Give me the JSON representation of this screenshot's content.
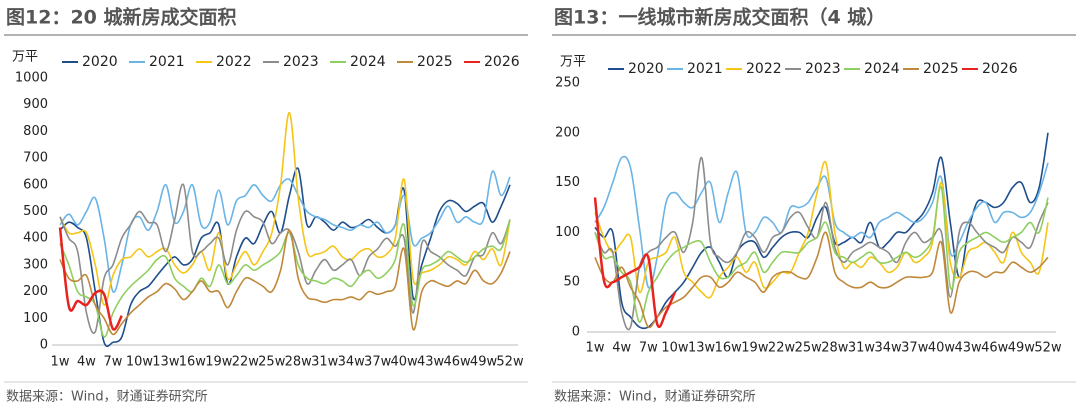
{
  "chart_data": [
    {
      "type": "line",
      "title": "图12：20 城新房成交面积",
      "y_label": "万平",
      "source": "数据来源：Wind，财通证券研究所",
      "categories": [
        "1w",
        null,
        null,
        "4w",
        null,
        null,
        "7w",
        null,
        null,
        "10w",
        null,
        null,
        "13w",
        null,
        null,
        "16w",
        null,
        null,
        "19w",
        null,
        null,
        "22w",
        null,
        null,
        "25w",
        null,
        null,
        "28w",
        null,
        null,
        "31w",
        null,
        null,
        "34w",
        null,
        null,
        "37w",
        null,
        null,
        "40w",
        null,
        null,
        "43w",
        null,
        null,
        "46w",
        null,
        null,
        "49w",
        null,
        null,
        "52w"
      ],
      "ylim": [
        0,
        1000
      ],
      "yticks": [
        0,
        100,
        200,
        300,
        400,
        500,
        600,
        700,
        800,
        900,
        1000
      ],
      "series": [
        {
          "name": "2020",
          "color": "#1f4e8c",
          "values": [
            430,
            460,
            440,
            400,
            200,
            10,
            10,
            30,
            150,
            200,
            220,
            260,
            300,
            330,
            300,
            320,
            400,
            420,
            450,
            230,
            330,
            400,
            380,
            450,
            500,
            420,
            560,
            660,
            450,
            480,
            460,
            430,
            460,
            440,
            450,
            470,
            440,
            420,
            450,
            580,
            180,
            300,
            400,
            500,
            540,
            530,
            500,
            520,
            530,
            460,
            520,
            600
          ]
        },
        {
          "name": "2021",
          "color": "#6ab4e6",
          "values": [
            450,
            490,
            450,
            500,
            550,
            400,
            200,
            300,
            450,
            480,
            430,
            500,
            600,
            460,
            500,
            600,
            450,
            460,
            580,
            450,
            540,
            560,
            600,
            560,
            540,
            600,
            620,
            560,
            500,
            480,
            470,
            450,
            440,
            430,
            450,
            440,
            460,
            420,
            450,
            560,
            380,
            400,
            420,
            470,
            520,
            460,
            480,
            460,
            470,
            650,
            560,
            630
          ]
        },
        {
          "name": "2022",
          "color": "#f5c518",
          "values": [
            480,
            420,
            420,
            420,
            300,
            150,
            260,
            320,
            330,
            360,
            330,
            350,
            360,
            300,
            270,
            300,
            350,
            280,
            420,
            250,
            300,
            350,
            300,
            350,
            420,
            600,
            870,
            550,
            350,
            340,
            350,
            370,
            330,
            320,
            350,
            360,
            330,
            340,
            400,
            620,
            250,
            270,
            280,
            300,
            330,
            320,
            300,
            350,
            320,
            360,
            300,
            470
          ]
        },
        {
          "name": "2023",
          "color": "#8c8c8c",
          "values": [
            480,
            400,
            350,
            120,
            50,
            250,
            300,
            400,
            450,
            500,
            460,
            450,
            350,
            470,
            600,
            350,
            350,
            380,
            400,
            300,
            430,
            500,
            480,
            460,
            380,
            420,
            430,
            350,
            230,
            280,
            320,
            280,
            300,
            320,
            260,
            330,
            360,
            400,
            370,
            400,
            120,
            380,
            350,
            330,
            300,
            280,
            260,
            330,
            340,
            420,
            380,
            470
          ]
        },
        {
          "name": "2024",
          "color": "#8fcf5f",
          "values": [
            380,
            300,
            200,
            180,
            150,
            30,
            120,
            180,
            220,
            250,
            280,
            320,
            330,
            250,
            220,
            200,
            250,
            220,
            300,
            230,
            260,
            300,
            280,
            300,
            320,
            350,
            420,
            300,
            250,
            240,
            230,
            250,
            240,
            220,
            260,
            280,
            250,
            270,
            320,
            450,
            150,
            280,
            300,
            320,
            350,
            330,
            310,
            330,
            360,
            370,
            360,
            470
          ]
        },
        {
          "name": "2025",
          "color": "#c0883a",
          "values": [
            320,
            250,
            240,
            260,
            150,
            100,
            40,
            80,
            120,
            150,
            180,
            200,
            230,
            210,
            170,
            200,
            240,
            200,
            200,
            140,
            200,
            250,
            240,
            220,
            200,
            280,
            430,
            250,
            180,
            170,
            160,
            170,
            170,
            180,
            170,
            200,
            190,
            200,
            220,
            360,
            60,
            200,
            240,
            230,
            220,
            240,
            230,
            280,
            240,
            230,
            270,
            350
          ]
        },
        {
          "name": "2026",
          "color": "#e8221e",
          "values": [
            440,
            145,
            165,
            150,
            195,
            190,
            60,
            110,
            null,
            null,
            null,
            null,
            null,
            null,
            null,
            null,
            null,
            null,
            null,
            null,
            null,
            null,
            null,
            null,
            null,
            null,
            null,
            null,
            null,
            null,
            null,
            null,
            null,
            null,
            null,
            null,
            null,
            null,
            null,
            null,
            null,
            null,
            null,
            null,
            null,
            null,
            null,
            null,
            null,
            null,
            null,
            null
          ]
        }
      ]
    },
    {
      "type": "line",
      "title": "图13：一线城市新房成交面积（4 城）",
      "y_label": "万平",
      "source": "数据来源：Wind，财通证券研究所",
      "categories": [
        "1w",
        null,
        null,
        "4w",
        null,
        null,
        "7w",
        null,
        null,
        "10w",
        null,
        null,
        "13w",
        null,
        null,
        "16w",
        null,
        null,
        "19w",
        null,
        null,
        "22w",
        null,
        null,
        "25w",
        null,
        null,
        "28w",
        null,
        null,
        "31w",
        null,
        null,
        "34w",
        null,
        null,
        "37w",
        null,
        null,
        "40w",
        null,
        null,
        "43w",
        null,
        null,
        "46w",
        null,
        null,
        "49w",
        null,
        null,
        "52w"
      ],
      "ylim": [
        0,
        250
      ],
      "yticks": [
        0,
        50,
        100,
        150,
        200,
        250
      ],
      "series": [
        {
          "name": "2020",
          "color": "#1f4e8c",
          "values": [
            105,
            95,
            100,
            30,
            15,
            5,
            5,
            15,
            30,
            40,
            50,
            65,
            80,
            85,
            70,
            55,
            80,
            90,
            90,
            75,
            85,
            95,
            100,
            100,
            95,
            115,
            125,
            90,
            90,
            95,
            90,
            110,
            85,
            90,
            100,
            100,
            110,
            120,
            140,
            175,
            110,
            55,
            100,
            130,
            130,
            125,
            130,
            145,
            150,
            130,
            145,
            200
          ]
        },
        {
          "name": "2021",
          "color": "#6ab4e6",
          "values": [
            110,
            125,
            150,
            175,
            165,
            105,
            45,
            75,
            130,
            140,
            130,
            125,
            140,
            150,
            110,
            140,
            160,
            100,
            100,
            115,
            110,
            100,
            125,
            125,
            130,
            145,
            155,
            110,
            100,
            95,
            100,
            95,
            110,
            115,
            120,
            115,
            110,
            115,
            130,
            155,
            80,
            90,
            110,
            125,
            130,
            110,
            120,
            120,
            115,
            120,
            140,
            170
          ]
        },
        {
          "name": "2022",
          "color": "#f5c518",
          "values": [
            120,
            95,
            80,
            90,
            95,
            40,
            70,
            75,
            80,
            95,
            60,
            50,
            40,
            35,
            55,
            65,
            75,
            60,
            70,
            45,
            50,
            60,
            60,
            80,
            100,
            140,
            170,
            100,
            65,
            70,
            65,
            75,
            70,
            60,
            65,
            80,
            70,
            75,
            90,
            150,
            70,
            55,
            80,
            85,
            90,
            80,
            70,
            100,
            80,
            70,
            60,
            110
          ]
        },
        {
          "name": "2023",
          "color": "#8c8c8c",
          "values": [
            100,
            80,
            80,
            20,
            5,
            65,
            80,
            85,
            95,
            100,
            80,
            110,
            175,
            90,
            75,
            70,
            80,
            100,
            95,
            80,
            95,
            100,
            115,
            120,
            105,
            95,
            130,
            85,
            70,
            80,
            85,
            90,
            85,
            80,
            70,
            90,
            100,
            90,
            95,
            100,
            35,
            100,
            110,
            100,
            90,
            85,
            80,
            95,
            90,
            85,
            110,
            130
          ]
        },
        {
          "name": "2024",
          "color": "#8fcf5f",
          "values": [
            100,
            75,
            75,
            60,
            50,
            10,
            40,
            55,
            70,
            80,
            85,
            90,
            90,
            70,
            55,
            55,
            65,
            70,
            80,
            60,
            70,
            80,
            80,
            80,
            90,
            95,
            110,
            80,
            75,
            70,
            75,
            80,
            70,
            70,
            75,
            80,
            75,
            80,
            95,
            145,
            45,
            80,
            90,
            95,
            100,
            95,
            90,
            95,
            100,
            110,
            100,
            135
          ]
        },
        {
          "name": "2025",
          "color": "#c0883a",
          "values": [
            75,
            55,
            50,
            65,
            45,
            30,
            5,
            15,
            25,
            30,
            35,
            45,
            55,
            55,
            45,
            50,
            60,
            55,
            50,
            40,
            55,
            60,
            60,
            55,
            55,
            75,
            100,
            60,
            50,
            45,
            45,
            50,
            45,
            45,
            50,
            55,
            55,
            55,
            60,
            90,
            20,
            50,
            60,
            60,
            55,
            60,
            60,
            70,
            65,
            60,
            65,
            75
          ]
        },
        {
          "name": "2026",
          "color": "#e8221e",
          "values": [
            135,
            52,
            50,
            55,
            60,
            65,
            75,
            8,
            20,
            40,
            null,
            null,
            null,
            null,
            null,
            null,
            null,
            null,
            null,
            null,
            null,
            null,
            null,
            null,
            null,
            null,
            null,
            null,
            null,
            null,
            null,
            null,
            null,
            null,
            null,
            null,
            null,
            null,
            null,
            null,
            null,
            null,
            null,
            null,
            null,
            null,
            null,
            null,
            null,
            null,
            null,
            null
          ]
        }
      ]
    }
  ]
}
